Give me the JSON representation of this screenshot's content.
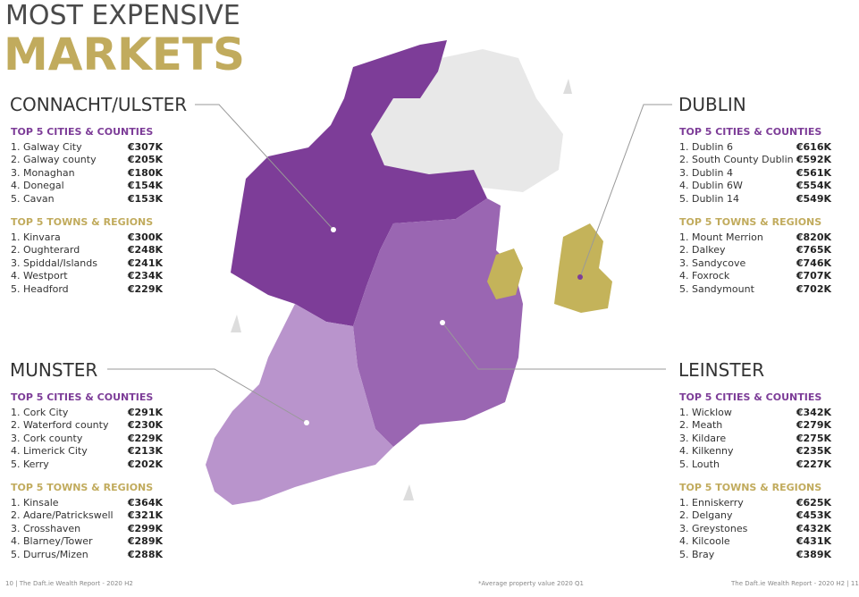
{
  "header": {
    "title_line1": "MOST EXPENSIVE",
    "title_line2": "MARKETS"
  },
  "regions": [
    {
      "name": "CONNACHT/ULSTER",
      "sections": [
        {
          "heading": "TOP 5 CITIES & COUNTIES",
          "items": [
            {
              "name": "1. Galway City",
              "price": "€307K"
            },
            {
              "name": "2. Galway county",
              "price": "€205K"
            },
            {
              "name": "3. Monaghan",
              "price": "€180K"
            },
            {
              "name": "4. Donegal",
              "price": "€154K"
            },
            {
              "name": "5. Cavan",
              "price": "€153K"
            }
          ]
        },
        {
          "heading": "TOP 5 TOWNS & REGIONS",
          "items": [
            {
              "name": "1. Kinvara",
              "price": "€300K"
            },
            {
              "name": "2. Oughterard",
              "price": "€248K"
            },
            {
              "name": "3. Spiddal/Islands",
              "price": "€241K"
            },
            {
              "name": "4. Westport",
              "price": "€234K"
            },
            {
              "name": "5. Headford",
              "price": "€229K"
            }
          ]
        }
      ]
    },
    {
      "name": "MUNSTER",
      "sections": [
        {
          "heading": "TOP 5 CITIES & COUNTIES",
          "items": [
            {
              "name": "1. Cork City",
              "price": "€291K"
            },
            {
              "name": "2. Waterford county",
              "price": "€230K"
            },
            {
              "name": "3. Cork county",
              "price": "€229K"
            },
            {
              "name": "4. Limerick City",
              "price": "€213K"
            },
            {
              "name": "5. Kerry",
              "price": "€202K"
            }
          ]
        },
        {
          "heading": "TOP 5 TOWNS & REGIONS",
          "items": [
            {
              "name": "1. Kinsale",
              "price": "€364K"
            },
            {
              "name": "2. Adare/Patrickswell",
              "price": "€321K"
            },
            {
              "name": "3. Crosshaven",
              "price": "€299K"
            },
            {
              "name": "4. Blarney/Tower",
              "price": "€289K"
            },
            {
              "name": "5. Durrus/Mizen",
              "price": "€288K"
            }
          ]
        }
      ]
    },
    {
      "name": "DUBLIN",
      "sections": [
        {
          "heading": "TOP 5 CITIES & COUNTIES",
          "items": [
            {
              "name": "1. Dublin 6",
              "price": "€616K"
            },
            {
              "name": "2. South County Dublin",
              "price": "€592K"
            },
            {
              "name": "3. Dublin 4",
              "price": "€561K"
            },
            {
              "name": "4. Dublin 6W",
              "price": "€554K"
            },
            {
              "name": "5. Dublin 14",
              "price": "€549K"
            }
          ]
        },
        {
          "heading": "TOP 5 TOWNS & REGIONS",
          "items": [
            {
              "name": "1. Mount Merrion",
              "price": "€820K"
            },
            {
              "name": "2. Dalkey",
              "price": "€765K"
            },
            {
              "name": "3. Sandycove",
              "price": "€746K"
            },
            {
              "name": "4. Foxrock",
              "price": "€707K"
            },
            {
              "name": "5. Sandymount",
              "price": "€702K"
            }
          ]
        }
      ]
    },
    {
      "name": "LEINSTER",
      "sections": [
        {
          "heading": "TOP 5 CITIES & COUNTIES",
          "items": [
            {
              "name": "1. Wicklow",
              "price": "€342K"
            },
            {
              "name": "2. Meath",
              "price": "€279K"
            },
            {
              "name": "3. Kildare",
              "price": "€275K"
            },
            {
              "name": "4. Kilkenny",
              "price": "€235K"
            },
            {
              "name": "5. Louth",
              "price": "€227K"
            }
          ]
        },
        {
          "heading": "TOP 5 TOWNS & REGIONS",
          "items": [
            {
              "name": "1. Enniskerry",
              "price": "€625K"
            },
            {
              "name": "2. Delgany",
              "price": "€453K"
            },
            {
              "name": "3. Greystones",
              "price": "€432K"
            },
            {
              "name": "4. Kilcoole",
              "price": "€431K"
            },
            {
              "name": "5. Bray",
              "price": "€389K"
            }
          ]
        }
      ]
    }
  ],
  "footer": {
    "left": "10 | The Daft.ie Wealth Report - 2020 H2",
    "center": "*Average property value 2020 Q1",
    "right": "The Daft.ie Wealth Report - 2020 H2 | 11"
  }
}
